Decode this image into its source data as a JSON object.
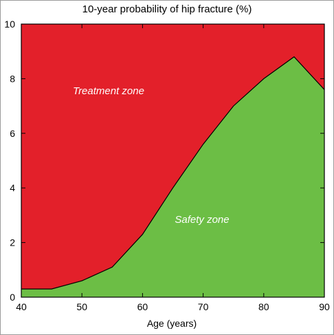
{
  "chart_data": {
    "type": "area",
    "title": "10-year probability of hip fracture (%)",
    "xlabel": "Age (years)",
    "ylabel": "",
    "xlim": [
      40,
      90
    ],
    "ylim": [
      0,
      10
    ],
    "x_ticks": [
      40,
      50,
      60,
      70,
      80,
      90
    ],
    "y_ticks": [
      0,
      2,
      4,
      6,
      8,
      10
    ],
    "x": [
      40,
      45,
      50,
      55,
      60,
      65,
      70,
      75,
      80,
      85,
      90
    ],
    "threshold": [
      0.3,
      0.3,
      0.6,
      1.1,
      2.3,
      4.0,
      5.6,
      7.0,
      8.0,
      8.8,
      7.6
    ],
    "regions": [
      {
        "label": "Treatment zone",
        "color": "#e3202a",
        "position": "above"
      },
      {
        "label": "Safety zone",
        "color": "#6cbe45",
        "position": "below"
      }
    ],
    "grid": false
  }
}
